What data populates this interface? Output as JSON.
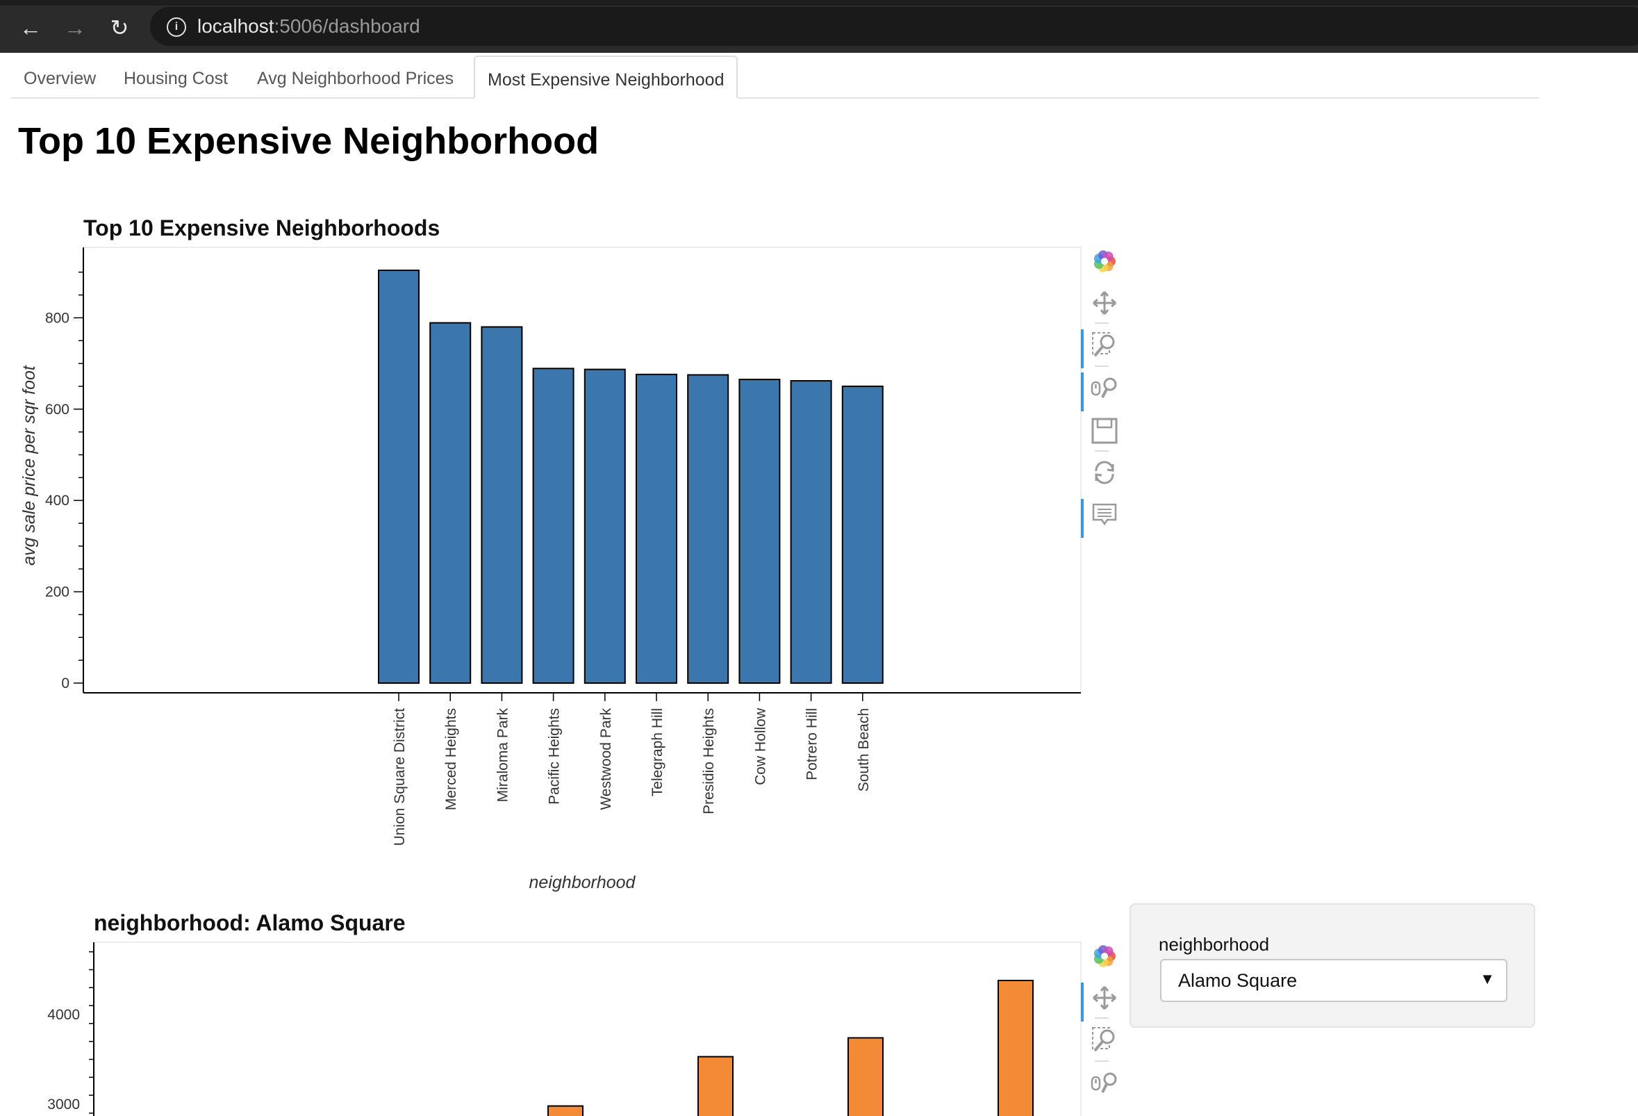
{
  "browser": {
    "url_host": "localhost",
    "url_rest": ":5006/dashboard",
    "back_glyph": "←",
    "forward_glyph": "→",
    "reload_glyph": "↻"
  },
  "tabs": [
    {
      "label": "Overview"
    },
    {
      "label": "Housing Cost"
    },
    {
      "label": "Avg Neighborhood Prices"
    },
    {
      "label": "Most Expensive Neighborhood",
      "active": true
    }
  ],
  "page_title": "Top 10 Expensive Neighborhood",
  "widget": {
    "label": "neighborhood",
    "selected": "Alamo Square",
    "caret": "▼"
  },
  "toolbar_icons": [
    "bokeh-logo-icon",
    "pan-icon",
    "box-zoom-icon",
    "wheel-zoom-icon",
    "save-icon",
    "reset-icon",
    "hover-icon"
  ],
  "colors": {
    "bar_blue": "#3b76ad",
    "bar_orange": "#f28a36"
  },
  "chart_data": [
    {
      "type": "bar",
      "title": "Top 10 Expensive Neighborhoods",
      "xlabel": "neighborhood",
      "ylabel": "avg sale price per sqr foot",
      "categories": [
        "Union Square District",
        "Merced Heights",
        "Miraloma Park",
        "Pacific Heights",
        "Westwood Park",
        "Telegraph Hill",
        "Presidio Heights",
        "Cow Hollow",
        "Potrero Hill",
        "South Beach"
      ],
      "values": [
        904,
        789,
        780,
        689,
        687,
        676,
        675,
        665,
        662,
        650
      ],
      "yticks": [
        0,
        200,
        400,
        600,
        800
      ],
      "ylim": [
        -20,
        958
      ],
      "grid": false
    },
    {
      "type": "bar",
      "title": "neighborhood: Alamo Square",
      "yticks": [
        3000,
        4000
      ],
      "values": [
        2980,
        3530,
        3740,
        4380
      ],
      "ylim": [
        2900,
        4780
      ],
      "grid": false
    }
  ]
}
